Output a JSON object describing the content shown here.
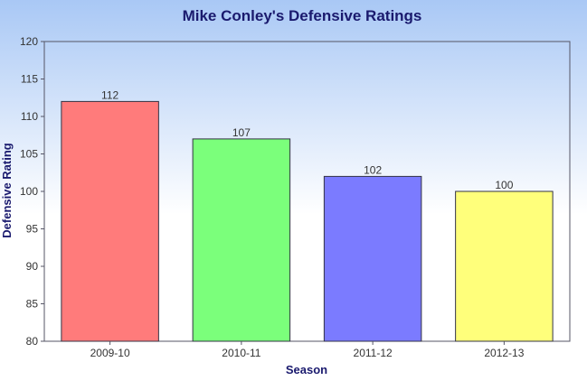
{
  "chart_data": {
    "type": "bar",
    "title": "Mike Conley's Defensive Ratings",
    "xlabel": "Season",
    "ylabel": "Defensive Rating",
    "categories": [
      "2009-10",
      "2010-11",
      "2011-12",
      "2012-13"
    ],
    "values": [
      112,
      107,
      102,
      100
    ],
    "value_labels": [
      "112",
      "107",
      "102",
      "100"
    ],
    "ylim": [
      80,
      120
    ],
    "yticks": [
      80,
      85,
      90,
      95,
      100,
      105,
      110,
      115,
      120
    ],
    "bar_colors": [
      "#ff7b7b",
      "#7bff7b",
      "#7b7bff",
      "#ffff7b"
    ],
    "legend": "none",
    "grid": false
  },
  "colors": {
    "background_top": "#a9c8f5",
    "background_bottom": "#ffffff",
    "title": "#1a1a6e",
    "axis": "#555566"
  }
}
